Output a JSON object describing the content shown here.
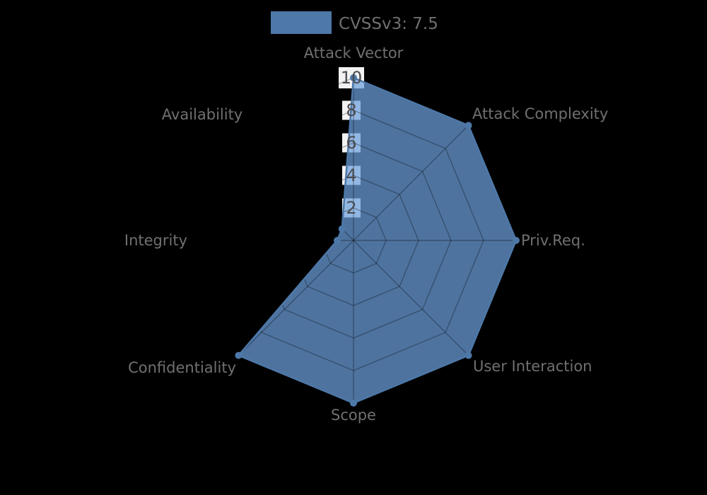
{
  "legend": {
    "label": "CVSSv3: 7.5",
    "swatch_color": "#4d78a8"
  },
  "chart_data": {
    "type": "radar",
    "title": "CVSSv3: 7.5",
    "categories": [
      "Attack Vector",
      "Attack Complexity",
      "Priv.Req.",
      "User Interaction",
      "Scope",
      "Confidentiality",
      "Integrity",
      "Availability"
    ],
    "series": [
      {
        "name": "CVSSv3: 7.5",
        "values": [
          10,
          10,
          10,
          10,
          10,
          10,
          1,
          1
        ]
      }
    ],
    "radial_ticks": [
      2,
      4,
      6,
      8,
      10
    ],
    "range": [
      0,
      10
    ],
    "grid": "polygon",
    "grid_levels": 5,
    "legend_position": "top",
    "color": "#4d78a8",
    "fill_color": "rgba(108,160,220,0.72)",
    "grid_line_color": "rgba(0,0,0,0.30)",
    "tick_box_color": "#f2f2f2",
    "tick_text_color": "#4b4b50",
    "label_color": "#707070",
    "background_color": "#000000"
  }
}
